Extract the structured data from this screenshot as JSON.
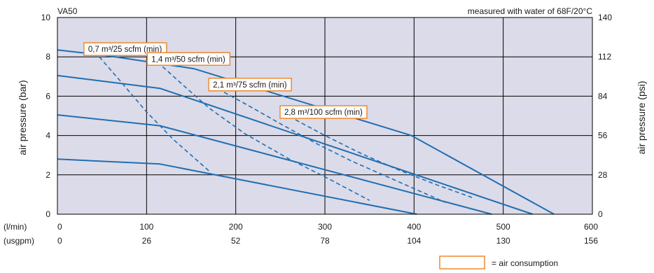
{
  "chart_data": {
    "type": "line",
    "title": "VA50",
    "note": "measured with water of 68F/20°C",
    "ylabel_left": "air pressure (bar)",
    "ylabel_right": "air pressure (psi)",
    "x_unit_primary": "(l/min)",
    "x_unit_secondary": "(usgpm)",
    "x_ticks_lmin": [
      "0",
      "100",
      "200",
      "300",
      "400",
      "500",
      "600"
    ],
    "x_ticks_usgpm": [
      "0",
      "26",
      "52",
      "78",
      "104",
      "130",
      "156"
    ],
    "y_ticks_bar": [
      "0",
      "2",
      "4",
      "6",
      "8",
      "10"
    ],
    "y_ticks_psi": [
      "0",
      "28",
      "56",
      "84",
      "112",
      "140"
    ],
    "xlim": [
      0,
      600
    ],
    "ylim": [
      0,
      10
    ],
    "grid": true,
    "background_color": "#dcdbe9",
    "line_color": "#1f6fb2",
    "box_color": "#ee8a2e",
    "series": [
      {
        "x": [
          0,
          115,
          403
        ],
        "y": [
          2.8,
          2.55,
          0
        ]
      },
      {
        "x": [
          0,
          115,
          487
        ],
        "y": [
          5.05,
          4.5,
          0
        ]
      },
      {
        "x": [
          0,
          115,
          533
        ],
        "y": [
          7.05,
          6.4,
          0
        ]
      },
      {
        "x": [
          0,
          50,
          153,
          397,
          557
        ],
        "y": [
          8.35,
          8.1,
          7.4,
          4.0,
          0
        ]
      }
    ],
    "consumption_curves": [
      {
        "label": "0,7 m³/25 scfm (min)",
        "x": [
          47,
          70,
          100,
          130,
          170
        ],
        "y": [
          8.0,
          6.8,
          5.2,
          3.8,
          2.2
        ]
      },
      {
        "label": "1,4 m³/50 scfm (min)",
        "x": [
          118,
          140,
          170,
          210,
          260,
          300,
          350
        ],
        "y": [
          7.5,
          6.6,
          5.4,
          4.1,
          2.8,
          1.9,
          0.7
        ]
      },
      {
        "label": "2,1 m³/75 scfm (min)",
        "x": [
          187,
          215,
          250,
          290,
          330,
          380,
          435
        ],
        "y": [
          6.2,
          5.5,
          4.6,
          3.6,
          2.7,
          1.7,
          0.6
        ]
      },
      {
        "label": "2,8 m³/100 scfm (min)",
        "x": [
          267,
          300,
          340,
          380,
          425,
          465
        ],
        "y": [
          4.8,
          4.0,
          3.1,
          2.3,
          1.5,
          0.85
        ]
      }
    ],
    "legend": {
      "label": "= air consumption"
    }
  }
}
